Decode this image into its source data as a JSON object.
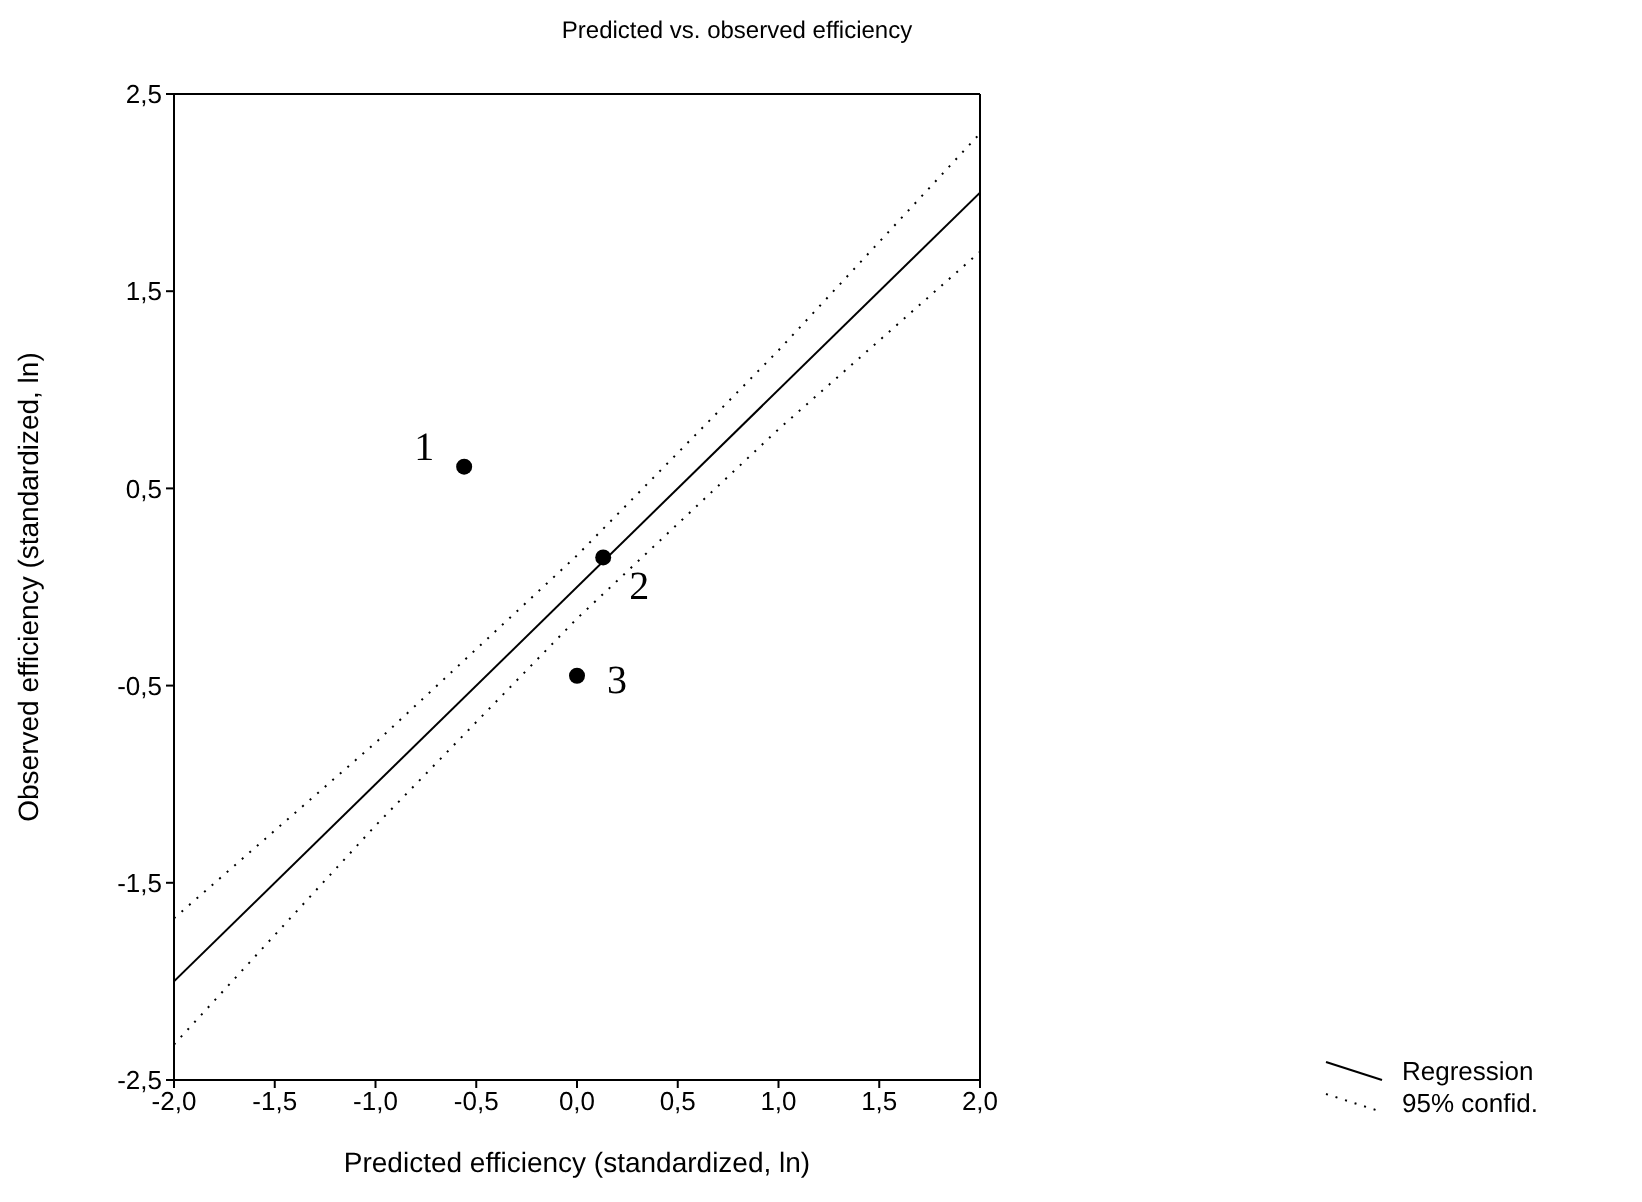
{
  "chart_data": {
    "type": "scatter",
    "title": "Predicted vs. observed efficiency",
    "xlabel": "Predicted efficiency (standardized, ln)",
    "ylabel": "Observed efficiency (standardized, ln)",
    "xlim": [
      -2,
      2
    ],
    "ylim": [
      -2.5,
      2.5
    ],
    "xticks": [
      {
        "value": -2,
        "label": "-2,0"
      },
      {
        "value": -1.5,
        "label": "-1,5"
      },
      {
        "value": -1,
        "label": "-1,0"
      },
      {
        "value": -0.5,
        "label": "-0,5"
      },
      {
        "value": 0,
        "label": "0,0"
      },
      {
        "value": 0.5,
        "label": "0,5"
      },
      {
        "value": 1,
        "label": "1,0"
      },
      {
        "value": 1.5,
        "label": "1,5"
      },
      {
        "value": 2,
        "label": "2,0"
      }
    ],
    "yticks": [
      {
        "value": -2.5,
        "label": "-2,5"
      },
      {
        "value": -1.5,
        "label": "-1,5"
      },
      {
        "value": -0.5,
        "label": "-0,5"
      },
      {
        "value": 0.5,
        "label": "0,5"
      },
      {
        "value": 1.5,
        "label": "1,5"
      },
      {
        "value": 2.5,
        "label": "2,5"
      }
    ],
    "legend": "bottom right",
    "marker": "circle",
    "series": [
      {
        "color": "#000000",
        "x": [
          -0.56,
          0.13,
          0.0
        ],
        "values": [
          0.61,
          0.15,
          -0.45
        ]
      },
      {
        "type": "line",
        "name": "Regression",
        "color": "#000000",
        "line_style": "solid",
        "marker": "none",
        "x": [
          -2,
          2
        ],
        "values": [
          -2,
          2
        ]
      },
      {
        "type": "line",
        "name": "95% confid.",
        "color": "#000000",
        "line_style": "dotted",
        "marker": "none",
        "x": [
          -2,
          -1,
          0,
          1,
          2
        ],
        "values": [
          -1.68,
          -0.79,
          0.16,
          1.2,
          2.3
        ]
      },
      {
        "type": "line",
        "color": "#000000",
        "line_style": "dotted",
        "marker": "none",
        "x": [
          -2,
          -1,
          0,
          1,
          2
        ],
        "values": [
          -2.32,
          -1.21,
          -0.16,
          0.8,
          1.7
        ]
      }
    ],
    "annotations": [
      {
        "text": "1",
        "x": -0.56,
        "y": 0.61
      },
      {
        "text": "2",
        "x": 0.13,
        "y": 0.15
      },
      {
        "text": "3",
        "x": 0.0,
        "y": -0.45
      }
    ]
  }
}
